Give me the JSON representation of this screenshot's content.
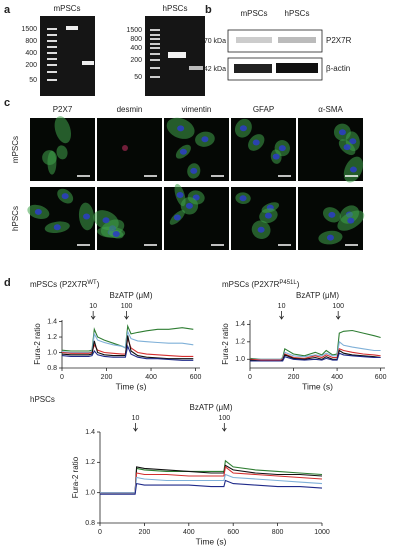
{
  "panel_labels": [
    "a",
    "b",
    "c",
    "d"
  ],
  "gels": [
    {
      "title": "mPSCs",
      "markers": [
        "1500",
        "800",
        "400",
        "200",
        "50"
      ]
    },
    {
      "title": "hPSCs",
      "markers": [
        "1500",
        "800",
        "400",
        "200",
        "50"
      ]
    }
  ],
  "western": {
    "columns": [
      "mPSCs",
      "hPSCs"
    ],
    "rows": [
      {
        "size": "70 kDa",
        "protein": "P2X7R"
      },
      {
        "size": "42 kDa",
        "protein": "β-actin"
      }
    ]
  },
  "staining": {
    "columns": [
      "P2X7",
      "desmin",
      "vimentin",
      "GFAP",
      "α-SMA"
    ],
    "rows": [
      "mPSCs",
      "hPSCs"
    ]
  },
  "chart_data": [
    {
      "type": "line",
      "title": "mPSCs (P2X7R",
      "title_superscript": "WT",
      "title_end": ")",
      "annotation_title": "BzATP (μM)",
      "annotations": [
        {
          "x": 140,
          "label": "10"
        },
        {
          "x": 290,
          "label": "100"
        }
      ],
      "xlabel": "Time (s)",
      "ylabel": "Fura-2 ratio",
      "x": [
        0,
        40,
        80,
        120,
        135,
        145,
        160,
        190,
        230,
        270,
        285,
        295,
        310,
        340,
        380,
        430,
        480,
        540,
        590
      ],
      "xlim": [
        0,
        620
      ],
      "xticks": [
        0,
        200,
        400,
        600
      ],
      "ylim": [
        0.8,
        1.42
      ],
      "yticks": [
        0.8,
        {
          "value": 1,
          "label": "1.0"
        },
        1.2,
        1.4
      ],
      "series": [
        {
          "color": "#2e7d32",
          "values": [
            1.03,
            1.02,
            1.02,
            1.02,
            1.03,
            1.3,
            1.2,
            1.16,
            1.12,
            1.08,
            1.06,
            1.34,
            1.24,
            1.26,
            1.28,
            1.3,
            1.3,
            1.32,
            1.3
          ]
        },
        {
          "color": "#7fb0d8",
          "values": [
            1.01,
            1.0,
            1.0,
            1.0,
            1.01,
            1.24,
            1.16,
            1.13,
            1.1,
            1.08,
            1.06,
            1.27,
            1.18,
            1.15,
            1.14,
            1.13,
            1.12,
            1.12,
            1.1
          ]
        },
        {
          "color": "#d32f2f",
          "values": [
            1.0,
            0.99,
            0.99,
            0.99,
            1.0,
            1.1,
            1.03,
            1.0,
            0.99,
            0.98,
            0.98,
            1.18,
            1.06,
            1.0,
            0.98,
            0.97,
            0.96,
            0.95,
            0.95
          ]
        },
        {
          "color": "#111111",
          "values": [
            0.98,
            0.97,
            0.97,
            0.97,
            0.98,
            1.15,
            1.0,
            0.97,
            0.96,
            0.96,
            0.96,
            1.22,
            1.02,
            0.96,
            0.94,
            0.93,
            0.92,
            0.92,
            0.92
          ]
        },
        {
          "color": "#1f2a8a",
          "values": [
            0.96,
            0.95,
            0.95,
            0.95,
            0.96,
            1.02,
            0.97,
            0.95,
            0.94,
            0.94,
            0.94,
            1.08,
            0.98,
            0.94,
            0.92,
            0.92,
            0.91,
            0.9,
            0.9
          ]
        }
      ]
    },
    {
      "type": "line",
      "title": "mPSCs (P2X7R",
      "title_superscript": "P451L",
      "title_end": ")",
      "annotation_title": "BzATP (μM)",
      "annotations": [
        {
          "x": 145,
          "label": "10"
        },
        {
          "x": 405,
          "label": "100"
        }
      ],
      "xlabel": "Time (s)",
      "ylabel": "Fura-2 ratio",
      "x": [
        0,
        50,
        100,
        140,
        150,
        160,
        200,
        250,
        300,
        330,
        350,
        380,
        400,
        410,
        430,
        470,
        520,
        570,
        600
      ],
      "xlim": [
        0,
        620
      ],
      "xticks": [
        0,
        200,
        400,
        600
      ],
      "ylim": [
        0.9,
        1.45
      ],
      "yticks": [
        {
          "value": 1,
          "label": "1.0"
        },
        1.2,
        1.4
      ],
      "series": [
        {
          "color": "#2e7d32",
          "values": [
            1.01,
            1.0,
            1.0,
            1.0,
            1.02,
            1.12,
            1.06,
            1.04,
            1.08,
            1.05,
            1.1,
            1.05,
            1.06,
            1.3,
            1.32,
            1.33,
            1.3,
            1.27,
            1.25
          ]
        },
        {
          "color": "#7fb0d8",
          "values": [
            1.0,
            1.0,
            1.0,
            1.0,
            1.01,
            1.08,
            1.04,
            1.03,
            1.05,
            1.04,
            1.07,
            1.04,
            1.04,
            1.2,
            1.16,
            1.14,
            1.12,
            1.1,
            1.1
          ]
        },
        {
          "color": "#d32f2f",
          "values": [
            1.0,
            0.99,
            0.99,
            0.99,
            1.0,
            1.06,
            1.02,
            1.01,
            1.04,
            1.02,
            1.05,
            1.02,
            1.02,
            1.12,
            1.1,
            1.08,
            1.06,
            1.05,
            1.04
          ]
        },
        {
          "color": "#111111",
          "values": [
            0.99,
            0.98,
            0.98,
            0.98,
            0.99,
            1.05,
            1.01,
            1.0,
            1.02,
            1.0,
            1.03,
            1.0,
            1.0,
            1.1,
            1.07,
            1.05,
            1.04,
            1.03,
            1.02
          ]
        },
        {
          "color": "#1f2a8a",
          "values": [
            0.98,
            0.98,
            0.98,
            0.98,
            0.98,
            1.03,
            1.0,
            0.99,
            1.0,
            0.99,
            1.01,
            0.99,
            0.99,
            1.07,
            1.05,
            1.04,
            1.03,
            1.02,
            1.02
          ]
        }
      ]
    },
    {
      "type": "line",
      "title": "hPSCs",
      "annotation_title": "BzATP (μM)",
      "annotations": [
        {
          "x": 160,
          "label": "10"
        },
        {
          "x": 560,
          "label": "100"
        }
      ],
      "xlabel": "Time (s)",
      "ylabel": "Fura-2 ratio",
      "x": [
        0,
        100,
        150,
        158,
        165,
        200,
        300,
        400,
        500,
        550,
        558,
        565,
        600,
        700,
        800,
        900,
        1000
      ],
      "xlim": [
        0,
        1000
      ],
      "xticks": [
        0,
        200,
        400,
        600,
        800,
        1000
      ],
      "ylim": [
        0.8,
        1.4
      ],
      "yticks": [
        0.8,
        {
          "value": 1,
          "label": "1.0"
        },
        1.2,
        1.4
      ],
      "series": [
        {
          "color": "#2e7d32",
          "values": [
            1.0,
            1.0,
            1.0,
            1.0,
            1.16,
            1.15,
            1.14,
            1.14,
            1.14,
            1.14,
            1.14,
            1.21,
            1.17,
            1.15,
            1.14,
            1.13,
            1.12
          ]
        },
        {
          "color": "#111111",
          "values": [
            1.0,
            1.0,
            1.0,
            1.0,
            1.17,
            1.16,
            1.15,
            1.14,
            1.13,
            1.13,
            1.13,
            1.18,
            1.15,
            1.13,
            1.12,
            1.12,
            1.11
          ]
        },
        {
          "color": "#d32f2f",
          "values": [
            1.0,
            1.0,
            1.0,
            1.0,
            1.13,
            1.12,
            1.12,
            1.11,
            1.11,
            1.11,
            1.11,
            1.17,
            1.13,
            1.12,
            1.11,
            1.1,
            1.09
          ]
        },
        {
          "color": "#7fb0d8",
          "values": [
            1.0,
            1.0,
            1.0,
            1.0,
            1.1,
            1.09,
            1.08,
            1.08,
            1.08,
            1.08,
            1.08,
            1.12,
            1.1,
            1.09,
            1.08,
            1.07,
            1.06
          ]
        },
        {
          "color": "#1f2a8a",
          "values": [
            0.99,
            0.99,
            0.99,
            0.99,
            1.06,
            1.05,
            1.05,
            1.05,
            1.04,
            1.04,
            1.04,
            1.08,
            1.06,
            1.05,
            1.04,
            1.04,
            1.03
          ]
        }
      ]
    }
  ]
}
